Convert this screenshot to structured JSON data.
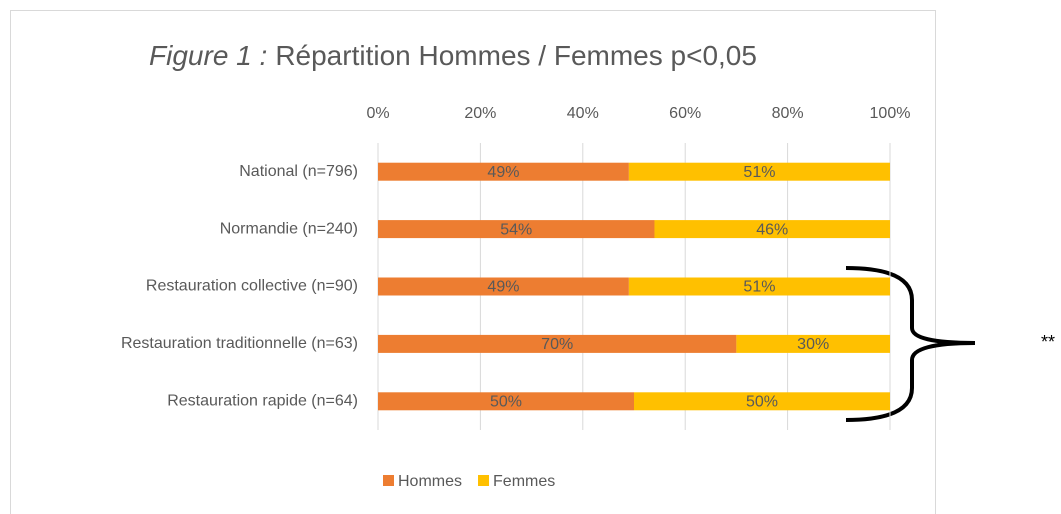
{
  "chart_data": {
    "type": "stacked_bar_horizontal",
    "title_prefix": "Figure 1 :",
    "title": "Répartition Hommes / Femmes p<0,05",
    "categories": [
      "National (n=796)",
      "Normandie (n=240)",
      "Restauration collective (n=90)",
      "Restauration traditionnelle (n=63)",
      "Restauration rapide (n=64)"
    ],
    "series": [
      {
        "name": "Hommes",
        "color": "#ED7D31",
        "values": [
          49,
          54,
          49,
          70,
          50
        ],
        "value_labels": [
          "49%",
          "54%",
          "49%",
          "70%",
          "50%"
        ]
      },
      {
        "name": "Femmes",
        "color": "#FFC000",
        "values": [
          51,
          46,
          51,
          30,
          50
        ],
        "value_labels": [
          "51%",
          "46%",
          "51%",
          "30%",
          "50%"
        ]
      }
    ],
    "xlim": [
      0,
      100
    ],
    "xticks": [
      {
        "value": 0,
        "label": "0%"
      },
      {
        "value": 20,
        "label": "20%"
      },
      {
        "value": 40,
        "label": "40%"
      },
      {
        "value": 60,
        "label": "60%"
      },
      {
        "value": 80,
        "label": "80%"
      },
      {
        "value": 100,
        "label": "100%"
      }
    ],
    "grid": true,
    "legend": "bottom",
    "annotation": "**"
  }
}
